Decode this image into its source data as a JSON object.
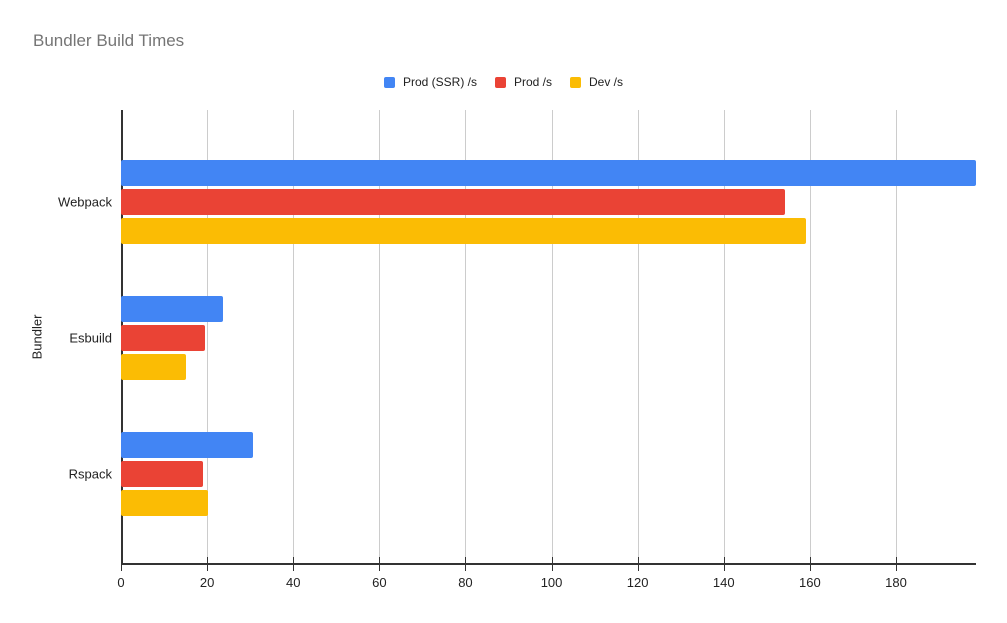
{
  "chart_data": {
    "type": "bar",
    "orientation": "horizontal",
    "title": "Bundler Build Times",
    "ylabel": "Bundler",
    "xlabel": "",
    "categories": [
      "Webpack",
      "Esbuild",
      "Rspack"
    ],
    "series": [
      {
        "name": "Prod (SSR) /s",
        "color": "#4285F4",
        "values": [
          198.5,
          23.6,
          30.6
        ]
      },
      {
        "name": "Prod /s",
        "color": "#EA4335",
        "values": [
          154.3,
          19.4,
          19.0
        ]
      },
      {
        "name": "Dev /s",
        "color": "#FBBC04",
        "values": [
          159.2,
          15.2,
          20.1
        ]
      }
    ],
    "x_ticks": [
      0,
      20,
      40,
      60,
      80,
      100,
      120,
      140,
      160,
      180
    ],
    "xlim": [
      0,
      198.5
    ],
    "grid": true,
    "legend_position": "top"
  },
  "style": {
    "title_color": "#757575",
    "label_color": "#222222",
    "grid_color": "#cccccc",
    "axis_color": "#333333",
    "background": "#ffffff"
  }
}
